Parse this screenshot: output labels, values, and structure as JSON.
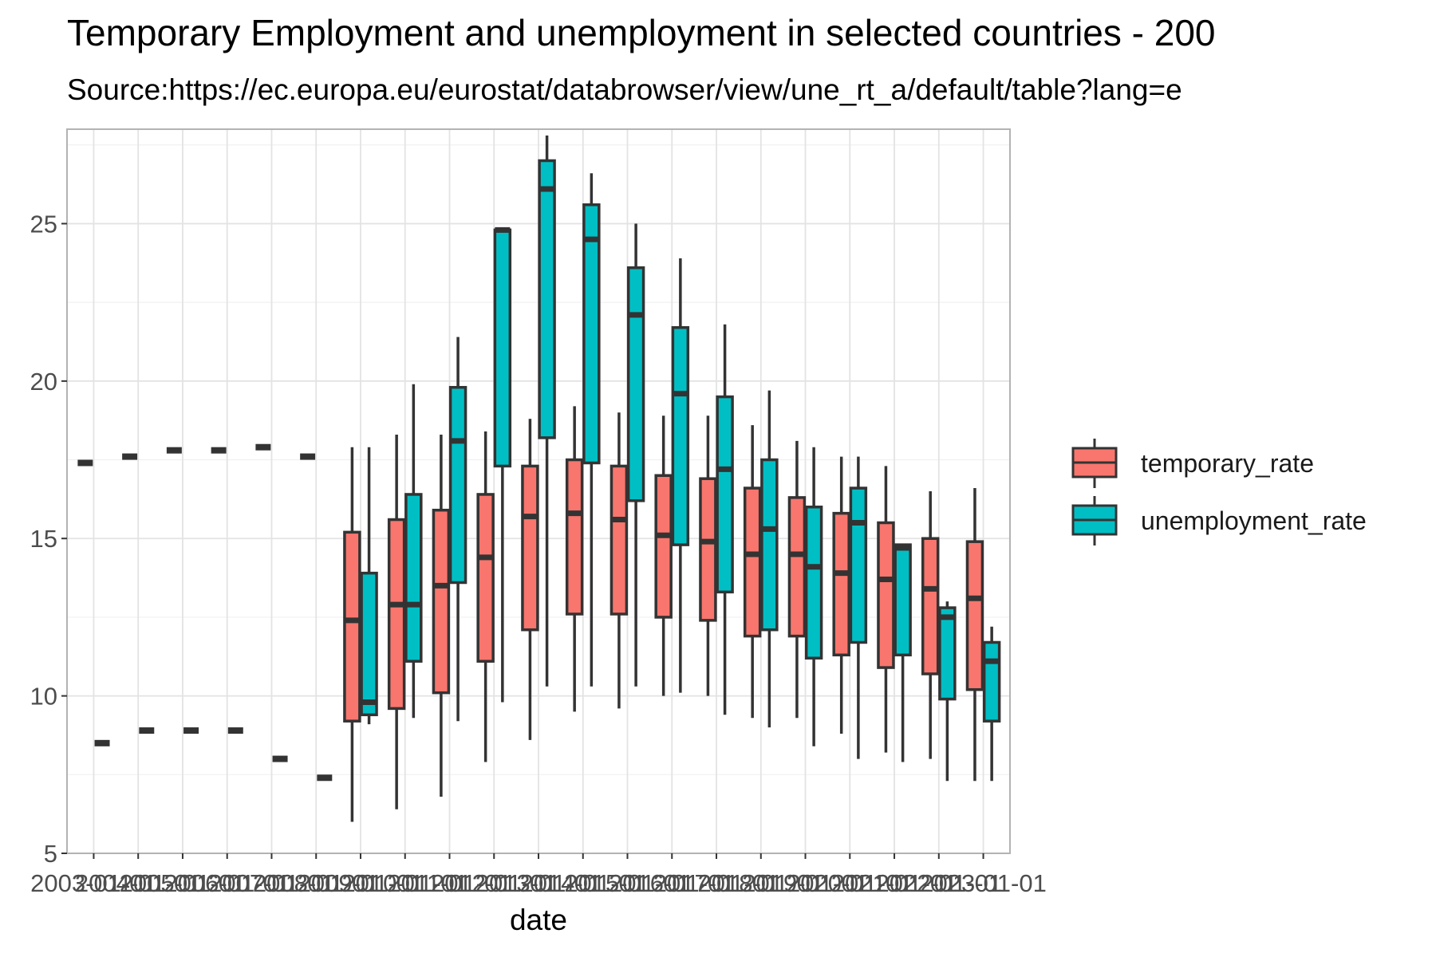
{
  "chart_data": {
    "type": "boxplot",
    "title": "Temporary Employment and unemployment in selected countries - 200",
    "subtitle": "Source:https://ec.europa.eu/eurostat/databrowser/view/une_rt_a/default/table?lang=e",
    "xlabel": "date",
    "ylabel": "",
    "ylim": [
      5,
      28
    ],
    "y_ticks": [
      5,
      10,
      15,
      20,
      25
    ],
    "grid": true,
    "legend_position": "right",
    "categories": [
      "2003-01-01",
      "2004-01-01",
      "2005-01-01",
      "2006-01-01",
      "2007-01-01",
      "2008-01-01",
      "2009-01-01",
      "2010-01-01",
      "2011-01-01",
      "2012-01-01",
      "2013-01-01",
      "2014-01-01",
      "2015-01-01",
      "2016-01-01",
      "2017-01-01",
      "2018-01-01",
      "2019-01-01",
      "2020-01-01",
      "2021-01-01",
      "2022-01-01",
      "2023-01-01"
    ],
    "series": [
      {
        "name": "temporary_rate",
        "color": "#F8766D",
        "boxes": [
          {
            "min": 17.4,
            "q1": 17.4,
            "median": 17.4,
            "q3": 17.4,
            "max": 17.4
          },
          {
            "min": 17.6,
            "q1": 17.6,
            "median": 17.6,
            "q3": 17.6,
            "max": 17.6
          },
          {
            "min": 17.8,
            "q1": 17.8,
            "median": 17.8,
            "q3": 17.8,
            "max": 17.8
          },
          {
            "min": 17.8,
            "q1": 17.8,
            "median": 17.8,
            "q3": 17.8,
            "max": 17.8
          },
          {
            "min": 17.9,
            "q1": 17.9,
            "median": 17.9,
            "q3": 17.9,
            "max": 17.9
          },
          {
            "min": 17.6,
            "q1": 17.6,
            "median": 17.6,
            "q3": 17.6,
            "max": 17.6
          },
          {
            "min": 6.0,
            "q1": 9.2,
            "median": 12.4,
            "q3": 15.2,
            "max": 17.9
          },
          {
            "min": 6.4,
            "q1": 9.6,
            "median": 12.9,
            "q3": 15.6,
            "max": 18.3
          },
          {
            "min": 6.8,
            "q1": 10.1,
            "median": 13.5,
            "q3": 15.9,
            "max": 18.3
          },
          {
            "min": 7.9,
            "q1": 11.1,
            "median": 14.4,
            "q3": 16.4,
            "max": 18.4
          },
          {
            "min": 8.6,
            "q1": 12.1,
            "median": 15.7,
            "q3": 17.3,
            "max": 18.8
          },
          {
            "min": 9.5,
            "q1": 12.6,
            "median": 15.8,
            "q3": 17.5,
            "max": 19.2
          },
          {
            "min": 9.6,
            "q1": 12.6,
            "median": 15.6,
            "q3": 17.3,
            "max": 19.0
          },
          {
            "min": 10.0,
            "q1": 12.5,
            "median": 15.1,
            "q3": 17.0,
            "max": 18.9
          },
          {
            "min": 10.0,
            "q1": 12.4,
            "median": 14.9,
            "q3": 16.9,
            "max": 18.9
          },
          {
            "min": 9.3,
            "q1": 11.9,
            "median": 14.5,
            "q3": 16.6,
            "max": 18.6
          },
          {
            "min": 9.3,
            "q1": 11.9,
            "median": 14.5,
            "q3": 16.3,
            "max": 18.1
          },
          {
            "min": 8.8,
            "q1": 11.3,
            "median": 13.9,
            "q3": 15.8,
            "max": 17.6
          },
          {
            "min": 8.2,
            "q1": 10.9,
            "median": 13.7,
            "q3": 15.5,
            "max": 17.3
          },
          {
            "min": 8.0,
            "q1": 10.7,
            "median": 13.4,
            "q3": 15.0,
            "max": 16.5
          },
          {
            "min": 7.3,
            "q1": 10.2,
            "median": 13.1,
            "q3": 14.9,
            "max": 16.6
          }
        ]
      },
      {
        "name": "unemployment_rate",
        "color": "#00BFC4",
        "boxes": [
          {
            "min": 8.5,
            "q1": 8.5,
            "median": 8.5,
            "q3": 8.5,
            "max": 8.5
          },
          {
            "min": 8.9,
            "q1": 8.9,
            "median": 8.9,
            "q3": 8.9,
            "max": 8.9
          },
          {
            "min": 8.9,
            "q1": 8.9,
            "median": 8.9,
            "q3": 8.9,
            "max": 8.9
          },
          {
            "min": 8.9,
            "q1": 8.9,
            "median": 8.9,
            "q3": 8.9,
            "max": 8.9
          },
          {
            "min": 8.0,
            "q1": 8.0,
            "median": 8.0,
            "q3": 8.0,
            "max": 8.0
          },
          {
            "min": 7.4,
            "q1": 7.4,
            "median": 7.4,
            "q3": 7.4,
            "max": 7.4
          },
          {
            "min": 9.1,
            "q1": 9.4,
            "median": 9.8,
            "q3": 13.9,
            "max": 17.9
          },
          {
            "min": 9.3,
            "q1": 11.1,
            "median": 12.9,
            "q3": 16.4,
            "max": 19.9
          },
          {
            "min": 9.2,
            "q1": 13.6,
            "median": 18.1,
            "q3": 19.8,
            "max": 21.4
          },
          {
            "min": 9.8,
            "q1": 17.3,
            "median": 24.8,
            "q3": 24.8,
            "max": 24.8
          },
          {
            "min": 10.3,
            "q1": 18.2,
            "median": 26.1,
            "q3": 27.0,
            "max": 27.8
          },
          {
            "min": 10.3,
            "q1": 17.4,
            "median": 24.5,
            "q3": 25.6,
            "max": 26.6
          },
          {
            "min": 10.3,
            "q1": 16.2,
            "median": 22.1,
            "q3": 23.6,
            "max": 25.0
          },
          {
            "min": 10.1,
            "q1": 14.8,
            "median": 19.6,
            "q3": 21.7,
            "max": 23.9
          },
          {
            "min": 9.4,
            "q1": 13.3,
            "median": 17.2,
            "q3": 19.5,
            "max": 21.8
          },
          {
            "min": 9.0,
            "q1": 12.1,
            "median": 15.3,
            "q3": 17.5,
            "max": 19.7
          },
          {
            "min": 8.4,
            "q1": 11.2,
            "median": 14.1,
            "q3": 16.0,
            "max": 17.9
          },
          {
            "min": 8.0,
            "q1": 11.7,
            "median": 15.5,
            "q3": 16.6,
            "max": 17.6
          },
          {
            "min": 7.9,
            "q1": 11.3,
            "median": 14.7,
            "q3": 14.8,
            "max": 14.8
          },
          {
            "min": 7.3,
            "q1": 9.9,
            "median": 12.5,
            "q3": 12.8,
            "max": 13.0
          },
          {
            "min": 7.3,
            "q1": 9.2,
            "median": 11.1,
            "q3": 11.7,
            "max": 12.2
          }
        ]
      }
    ]
  }
}
